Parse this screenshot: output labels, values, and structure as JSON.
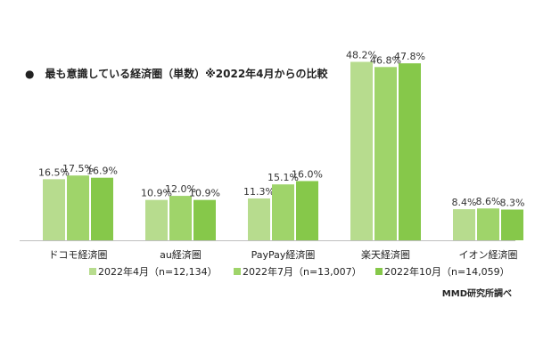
{
  "title": "●　最も意識している経済圏（単数）※2022年4月からの比較",
  "source": "MMD研究所調べ",
  "colors": [
    "#b7dc8e",
    "#9fd46a",
    "#86c84a"
  ],
  "chart_data": {
    "type": "bar",
    "categories": [
      "ドコモ経済圏",
      "au経済圏",
      "PayPay経済圏",
      "楽天経済圏",
      "イオン経済圏"
    ],
    "series": [
      {
        "name": "2022年4月（n=12,134）",
        "values": [
          16.5,
          10.9,
          11.3,
          48.2,
          8.4
        ],
        "labels": [
          "16.5%",
          "10.9%",
          "11.3%",
          "48.2%",
          "8.4%"
        ]
      },
      {
        "name": "2022年7月（n=13,007）",
        "values": [
          17.5,
          12.0,
          15.1,
          46.8,
          8.6
        ],
        "labels": [
          "17.5%",
          "12.0%",
          "15.1%",
          "46.8%",
          "8.6%"
        ]
      },
      {
        "name": "2022年10月（n=14,059）",
        "values": [
          16.9,
          10.9,
          16.0,
          47.8,
          8.3
        ],
        "labels": [
          "16.9%",
          "10.9%",
          "16.0%",
          "47.8%",
          "8.3%"
        ]
      }
    ],
    "ylim": [
      0,
      50
    ],
    "grid": false,
    "legend": "bottom"
  }
}
